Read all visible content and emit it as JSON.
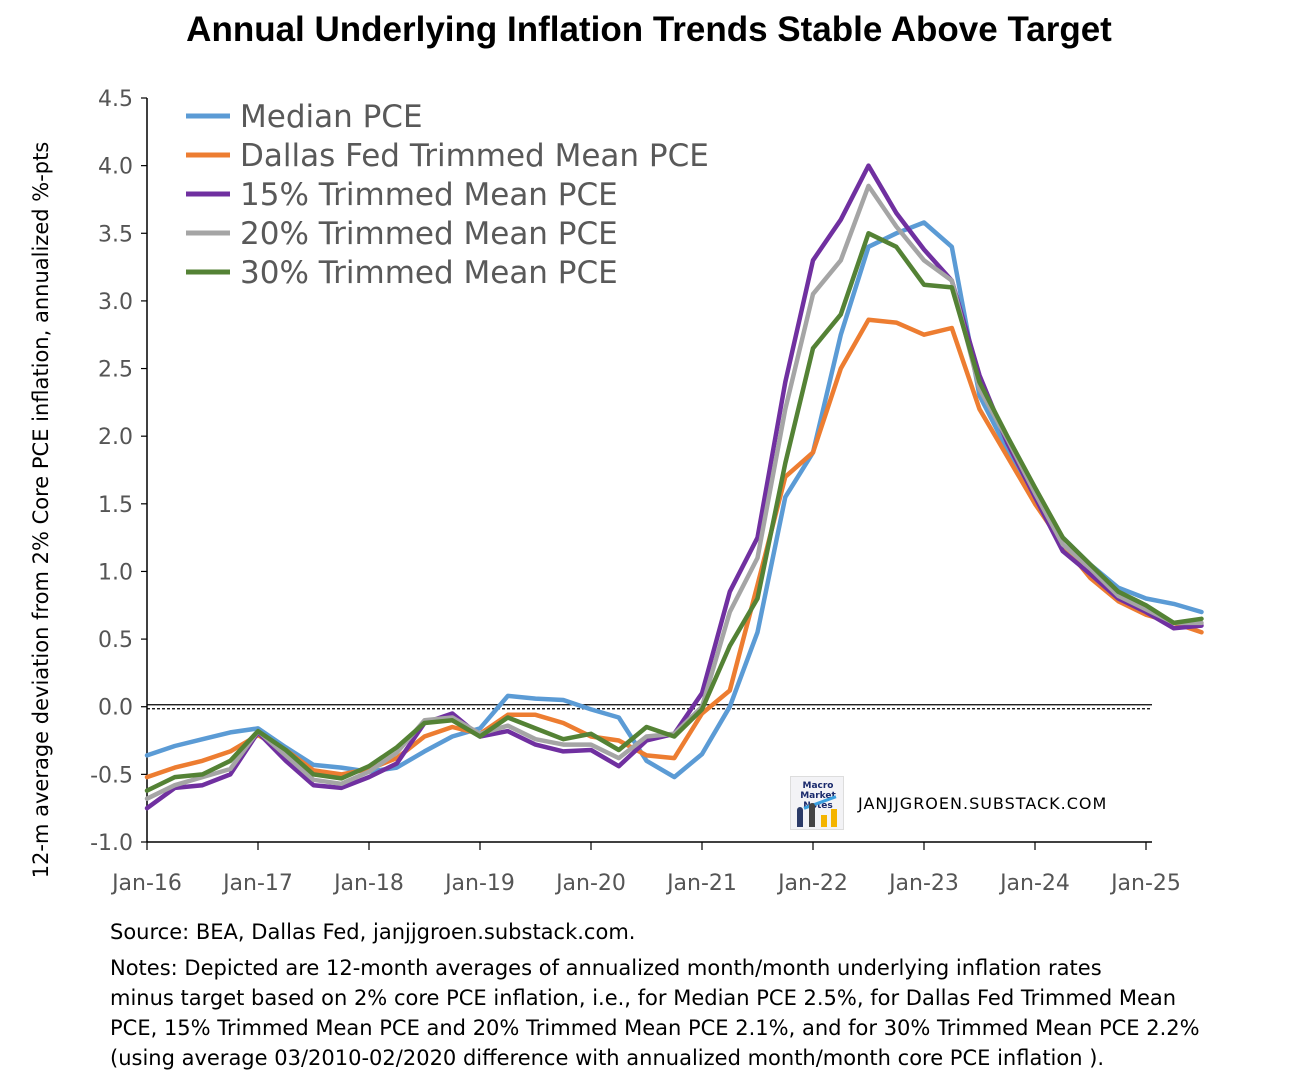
{
  "chart_data": {
    "type": "line",
    "title": "Annual Underlying Inflation Trends Stable Above Target",
    "ylabel": "12-m average deviation from 2% Core PCE inflation, annualized %-pts",
    "xlabel": "",
    "x_ticks": [
      "Jan-16",
      "Jan-17",
      "Jan-18",
      "Jan-19",
      "Jan-20",
      "Jan-21",
      "Jan-22",
      "Jan-23",
      "Jan-24",
      "Jan-25"
    ],
    "y_ticks": [
      "4.5",
      "4.0",
      "3.5",
      "3.0",
      "2.5",
      "2.0",
      "1.5",
      "1.0",
      "0.5",
      "0.0",
      "-0.5",
      "-1.0"
    ],
    "ylim": [
      -1.0,
      4.5
    ],
    "xlim": [
      "Jan-16",
      "Jan-25"
    ],
    "legend_position": "top-left",
    "reference_line": 0.0,
    "series_step_months": 3,
    "series": [
      {
        "name": "Median PCE",
        "color": "#5b9bd5",
        "values": [
          -0.36,
          -0.29,
          -0.24,
          -0.19,
          -0.16,
          -0.3,
          -0.43,
          -0.45,
          -0.48,
          -0.45,
          -0.33,
          -0.22,
          -0.16,
          0.08,
          0.06,
          0.05,
          -0.02,
          -0.08,
          -0.4,
          -0.52,
          -0.35,
          0.0,
          0.55,
          1.55,
          1.88,
          2.75,
          3.4,
          3.5,
          3.58,
          3.4,
          2.3,
          1.9,
          1.55,
          1.25,
          1.05,
          0.88,
          0.8,
          0.76,
          0.7
        ]
      },
      {
        "name": "Dallas Fed Trimmed Mean PCE",
        "color": "#ed7d31",
        "values": [
          -0.52,
          -0.45,
          -0.4,
          -0.33,
          -0.21,
          -0.32,
          -0.47,
          -0.5,
          -0.46,
          -0.38,
          -0.22,
          -0.15,
          -0.2,
          -0.06,
          -0.06,
          -0.12,
          -0.22,
          -0.25,
          -0.36,
          -0.38,
          -0.05,
          0.12,
          0.9,
          1.7,
          1.88,
          2.5,
          2.86,
          2.84,
          2.75,
          2.8,
          2.2,
          1.85,
          1.5,
          1.2,
          0.95,
          0.78,
          0.68,
          0.62,
          0.55
        ]
      },
      {
        "name": "15% Trimmed Mean PCE",
        "color": "#7030a0",
        "values": [
          -0.75,
          -0.6,
          -0.58,
          -0.5,
          -0.19,
          -0.4,
          -0.58,
          -0.6,
          -0.52,
          -0.42,
          -0.12,
          -0.05,
          -0.22,
          -0.18,
          -0.28,
          -0.33,
          -0.32,
          -0.44,
          -0.25,
          -0.2,
          0.1,
          0.85,
          1.25,
          2.4,
          3.3,
          3.6,
          4.0,
          3.65,
          3.38,
          3.15,
          2.45,
          1.95,
          1.55,
          1.15,
          0.98,
          0.8,
          0.7,
          0.58,
          0.6
        ]
      },
      {
        "name": "20% Trimmed Mean PCE",
        "color": "#a5a5a5",
        "values": [
          -0.68,
          -0.58,
          -0.52,
          -0.46,
          -0.18,
          -0.36,
          -0.54,
          -0.57,
          -0.48,
          -0.34,
          -0.1,
          -0.08,
          -0.2,
          -0.14,
          -0.24,
          -0.28,
          -0.28,
          -0.38,
          -0.22,
          -0.2,
          0.0,
          0.7,
          1.1,
          2.2,
          3.05,
          3.3,
          3.85,
          3.55,
          3.3,
          3.15,
          2.35,
          1.98,
          1.58,
          1.2,
          1.02,
          0.82,
          0.72,
          0.62,
          0.62
        ]
      },
      {
        "name": "30% Trimmed Mean PCE",
        "color": "#548235",
        "values": [
          -0.62,
          -0.52,
          -0.5,
          -0.4,
          -0.18,
          -0.32,
          -0.5,
          -0.53,
          -0.44,
          -0.3,
          -0.12,
          -0.1,
          -0.22,
          -0.08,
          -0.16,
          -0.24,
          -0.2,
          -0.32,
          -0.15,
          -0.22,
          -0.02,
          0.45,
          0.8,
          1.8,
          2.65,
          2.9,
          3.5,
          3.4,
          3.12,
          3.1,
          2.4,
          2.0,
          1.62,
          1.25,
          1.05,
          0.85,
          0.75,
          0.62,
          0.65
        ]
      }
    ]
  },
  "watermark": "JANJJGROEN.SUBSTACK.COM",
  "logo": {
    "text": "Macro Market Notes"
  },
  "footer": {
    "source": "Source: BEA, Dallas Fed, janjjgroen.substack.com.",
    "notes_1": "Notes: Depicted are 12-month averages of annualized month/month underlying inflation rates",
    "notes_2": "minus target based on 2% core PCE inflation, i.e., for Median PCE 2.5%, for Dallas Fed Trimmed Mean",
    "notes_3": "PCE, 15% Trimmed Mean PCE and 20% Trimmed Mean PCE 2.1%, and for 30% Trimmed Mean PCE 2.2%",
    "notes_4": "(using average 03/2010-02/2020 difference with annualized month/month core PCE inflation )."
  }
}
